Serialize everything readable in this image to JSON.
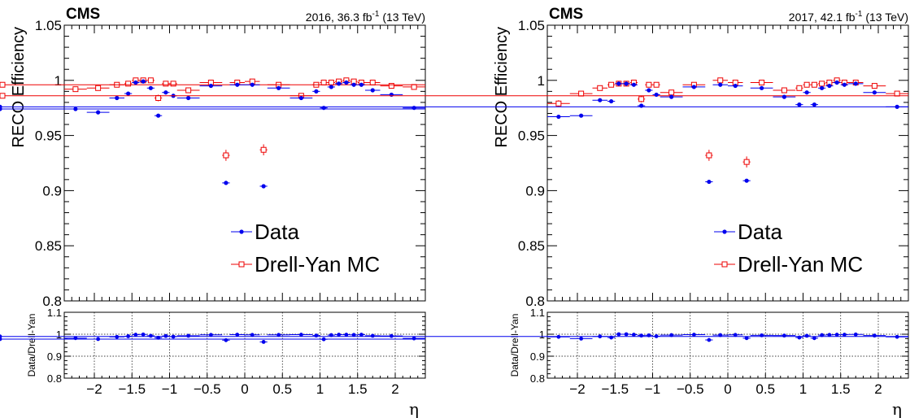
{
  "chart_data": [
    {
      "type": "scatter",
      "experiment_label": "CMS",
      "lumi_text": "2016, 36.3 fb",
      "lumi_sup": "-1",
      "energy_text": " (13 TeV)",
      "ylabel": "RECO Efficiency",
      "ratio_ylabel": "Data/Drell-Yan",
      "xlabel": "η",
      "xlim": [
        -2.4,
        2.4
      ],
      "ylim": [
        0.8,
        1.05
      ],
      "ratio_ylim": [
        0.8,
        1.1
      ],
      "x_ticks": [
        "−2",
        "−1.5",
        "−1",
        "−0.5",
        "0",
        "0.5",
        "1",
        "1.5",
        "2"
      ],
      "x_tick_values": [
        -2,
        -1.5,
        -1,
        -0.5,
        0,
        0.5,
        1,
        1.5,
        2
      ],
      "y_ticks": [
        "0.8",
        "0.85",
        "0.9",
        "0.95",
        "1",
        "1.05"
      ],
      "y_tick_values": [
        0.8,
        0.85,
        0.9,
        0.95,
        1.0,
        1.05
      ],
      "ratio_y_ticks": [
        "0.8",
        "0.9",
        "1",
        "1.1"
      ],
      "ratio_y_tick_values": [
        0.8,
        0.9,
        1.0,
        1.1
      ],
      "grid": "ratio panel only",
      "legend_position": "bottom-right",
      "bin_edges": [
        -2.4,
        -2.1,
        -1.8,
        -1.6,
        -1.5,
        -1.4,
        -1.3,
        -1.2,
        -1.1,
        -1.0,
        -0.9,
        -0.6,
        -0.3,
        -0.2,
        0.0,
        0.2,
        0.3,
        0.6,
        0.9,
        1.0,
        1.1,
        1.2,
        1.3,
        1.4,
        1.5,
        1.6,
        1.8,
        2.1,
        2.4
      ],
      "series": [
        {
          "name": "Data",
          "color": "#0000ee",
          "marker": "filled-circle",
          "values": [
            0.974,
            0.971,
            0.984,
            0.988,
            0.998,
            0.999,
            0.993,
            0.968,
            0.989,
            0.986,
            0.984,
            0.995,
            0.907,
            0.996,
            0.996,
            0.904,
            0.993,
            0.984,
            0.99,
            0.975,
            0.994,
            0.997,
            0.998,
            0.996,
            0.996,
            0.991,
            0.987,
            0.975,
            0.974
          ]
        },
        {
          "name": "Drell-Yan MC",
          "color": "#ee0000",
          "marker": "open-square",
          "values": [
            0.992,
            0.993,
            0.996,
            0.997,
            1.0,
            1.0,
            1.0,
            0.984,
            0.997,
            0.997,
            0.991,
            0.998,
            0.932,
            0.998,
            0.999,
            0.937,
            0.996,
            0.986,
            0.996,
            0.998,
            0.998,
            0.999,
            1.0,
            0.999,
            0.998,
            0.998,
            0.995,
            0.994,
            0.996
          ]
        }
      ],
      "mc_errors": [
        0.002,
        0.002,
        0.002,
        0.002,
        0.002,
        0.002,
        0.002,
        0.003,
        0.002,
        0.002,
        0.002,
        0.002,
        0.005,
        0.002,
        0.002,
        0.005,
        0.002,
        0.002,
        0.002,
        0.002,
        0.002,
        0.002,
        0.002,
        0.002,
        0.002,
        0.002,
        0.002,
        0.002,
        0.002
      ],
      "ratio_values": [
        0.982,
        0.978,
        0.988,
        0.991,
        0.998,
        0.999,
        0.993,
        0.984,
        0.992,
        0.989,
        0.993,
        0.997,
        0.973,
        0.998,
        0.997,
        0.965,
        0.997,
        0.998,
        0.994,
        0.977,
        0.996,
        0.998,
        0.998,
        0.997,
        0.998,
        0.993,
        0.992,
        0.981,
        0.978
      ]
    },
    {
      "type": "scatter",
      "experiment_label": "CMS",
      "lumi_text": "2017, 42.1 fb",
      "lumi_sup": "-1",
      "energy_text": " (13 TeV)",
      "ylabel": "RECO Efficiency",
      "ratio_ylabel": "Data/Drell-Yan",
      "xlabel": "η",
      "xlim": [
        -2.4,
        2.4
      ],
      "ylim": [
        0.8,
        1.05
      ],
      "ratio_ylim": [
        0.8,
        1.1
      ],
      "x_ticks": [
        "−2",
        "−1.5",
        "−1",
        "−0.5",
        "0",
        "0.5",
        "1",
        "1.5",
        "2"
      ],
      "x_tick_values": [
        -2,
        -1.5,
        -1,
        -0.5,
        0,
        0.5,
        1,
        1.5,
        2
      ],
      "y_ticks": [
        "0.8",
        "0.85",
        "0.9",
        "0.95",
        "1",
        "1.05"
      ],
      "y_tick_values": [
        0.8,
        0.85,
        0.9,
        0.95,
        1.0,
        1.05
      ],
      "ratio_y_ticks": [
        "0.8",
        "0.9",
        "1",
        "1.1"
      ],
      "ratio_y_tick_values": [
        0.8,
        0.9,
        1.0,
        1.1
      ],
      "grid": "ratio panel only",
      "legend_position": "bottom-right",
      "bin_edges": [
        -2.4,
        -2.1,
        -1.8,
        -1.6,
        -1.5,
        -1.4,
        -1.3,
        -1.2,
        -1.1,
        -1.0,
        -0.9,
        -0.6,
        -0.3,
        -0.2,
        0.0,
        0.2,
        0.3,
        0.6,
        0.9,
        1.0,
        1.1,
        1.2,
        1.3,
        1.4,
        1.5,
        1.6,
        1.8,
        2.1,
        2.4
      ],
      "series": [
        {
          "name": "Data",
          "color": "#0000ee",
          "marker": "filled-circle",
          "values": [
            0.967,
            0.968,
            0.982,
            0.981,
            0.997,
            0.997,
            0.996,
            0.977,
            0.991,
            0.987,
            0.985,
            0.994,
            0.908,
            0.996,
            0.995,
            0.909,
            0.993,
            0.985,
            0.978,
            0.989,
            0.978,
            0.993,
            0.995,
            0.998,
            0.996,
            0.997,
            0.989,
            0.976,
            0.976
          ]
        },
        {
          "name": "Drell-Yan MC",
          "color": "#ee0000",
          "marker": "open-square",
          "values": [
            0.979,
            0.988,
            0.993,
            0.996,
            0.997,
            0.997,
            0.998,
            0.983,
            0.996,
            0.996,
            0.989,
            0.996,
            0.932,
            1.0,
            0.998,
            0.926,
            0.998,
            0.991,
            0.993,
            0.996,
            0.996,
            0.997,
            0.998,
            1.0,
            0.998,
            0.998,
            0.995,
            0.988,
            0.986
          ]
        }
      ],
      "mc_errors": [
        0.003,
        0.002,
        0.002,
        0.002,
        0.002,
        0.002,
        0.002,
        0.003,
        0.002,
        0.002,
        0.002,
        0.002,
        0.005,
        0.002,
        0.002,
        0.005,
        0.002,
        0.002,
        0.002,
        0.002,
        0.002,
        0.002,
        0.002,
        0.002,
        0.002,
        0.002,
        0.002,
        0.002,
        0.002
      ],
      "ratio_values": [
        0.988,
        0.98,
        0.99,
        0.985,
        1.0,
        1.0,
        0.998,
        0.994,
        0.995,
        0.991,
        0.996,
        0.998,
        0.974,
        0.996,
        0.997,
        0.982,
        0.995,
        0.994,
        0.985,
        0.993,
        0.982,
        0.996,
        0.997,
        0.998,
        0.998,
        0.999,
        0.994,
        0.988,
        0.99
      ]
    }
  ]
}
